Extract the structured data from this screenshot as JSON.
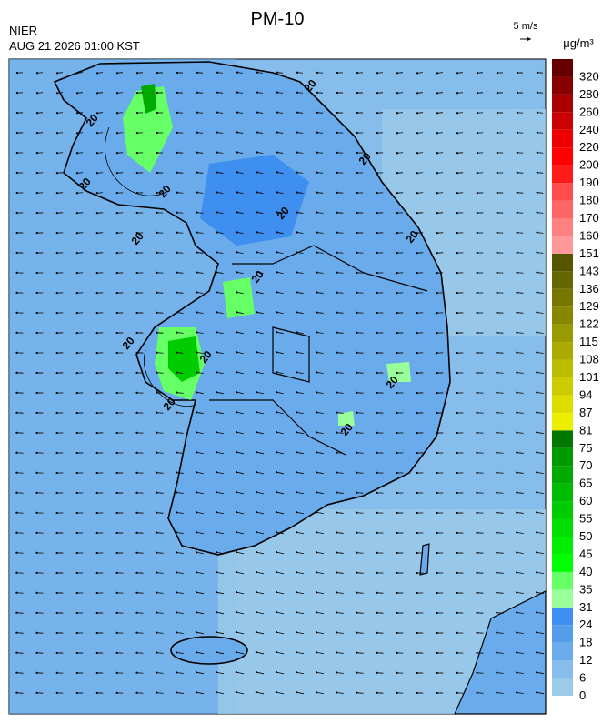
{
  "title": "PM-10",
  "source": "NIER",
  "datetime": "AUG 21 2026 01:00 KST",
  "wind_scale": "5 m/s",
  "unit": "μg/m³",
  "contour_label": "20",
  "colorbar": {
    "labels": [
      "0",
      "6",
      "12",
      "18",
      "24",
      "31",
      "35",
      "40",
      "45",
      "50",
      "55",
      "60",
      "65",
      "70",
      "75",
      "81",
      "87",
      "94",
      "101",
      "108",
      "115",
      "122",
      "129",
      "136",
      "143",
      "151",
      "160",
      "170",
      "180",
      "190",
      "200",
      "220",
      "240",
      "260",
      "280",
      "320"
    ],
    "colors": [
      "#9ccbe8",
      "#87bdea",
      "#6aabeb",
      "#549deb",
      "#3f8ff0",
      "#99ff99",
      "#66ff66",
      "#00ff00",
      "#00ee00",
      "#00dd00",
      "#00cc00",
      "#00bb00",
      "#00aa00",
      "#009900",
      "#007700",
      "#eeee00",
      "#dddd00",
      "#cccc00",
      "#bbbb00",
      "#aaaa00",
      "#999900",
      "#888800",
      "#777700",
      "#666600",
      "#555500",
      "#ff9999",
      "#ff8080",
      "#ff6666",
      "#ff4d4d",
      "#ff1a1a",
      "#ff0000",
      "#ee0000",
      "#cc0000",
      "#aa0000",
      "#880000",
      "#660000"
    ]
  }
}
